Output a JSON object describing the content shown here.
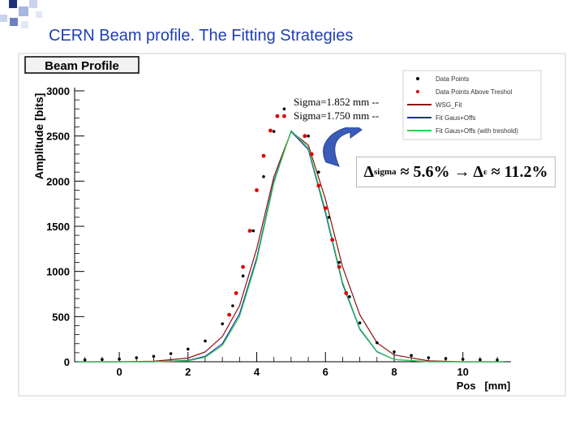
{
  "slide": {
    "title": "CERN Beam profile. The Fitting Strategies"
  },
  "colors": {
    "title": "#1f3fb5",
    "data_points": "#000000",
    "above_threshold": "#e00000",
    "wsg_fit": "#8b1010",
    "fit_gauss_offs": "#1a2db0",
    "fit_gauss_offs_threshold": "#2ad44a",
    "arrow": "#3a5bb8"
  },
  "annotations": {
    "sigma_1": "Sigma=1.852 mm --",
    "sigma_2": "Sigma=1.750 mm --",
    "formula": {
      "delta": "Δ",
      "delta_sub_sigma": "sigma",
      "approx_1": "≈ 5.6% → Δ",
      "delta_sub_e": "ε",
      "approx_2": "≈ 11.2%"
    }
  },
  "chart_data": {
    "type": "scatter",
    "title": "Beam Profile",
    "xlabel": "Pos   [mm]",
    "ylabel": "Amplitude  [bits]",
    "xlim": [
      -1.3,
      11.4
    ],
    "ylim": [
      0,
      3000
    ],
    "x_ticks": [
      0,
      2,
      4,
      6,
      8,
      10
    ],
    "y_ticks": [
      0,
      500,
      1000,
      1500,
      2000,
      2500,
      3000
    ],
    "grid": false,
    "legend_position": "top-right",
    "legend": [
      "Data Points",
      "Data Points Above Treshol",
      "WSG_Fit",
      "Fit Gaus+Offs",
      "Fit Gaus+Offs (with treshold)"
    ],
    "series": [
      {
        "name": "Data Points",
        "kind": "points",
        "color": "#000000",
        "x": [
          -1.0,
          -0.5,
          0.0,
          0.5,
          1.0,
          1.5,
          2.0,
          2.5,
          3.0,
          3.3,
          3.6,
          3.9,
          4.2,
          4.5,
          4.8,
          5.0,
          5.2,
          5.5,
          5.8,
          6.1,
          6.4,
          6.7,
          7.0,
          7.5,
          8.0,
          8.5,
          9.0,
          9.5,
          10.0,
          10.5,
          11.0
        ],
        "y": [
          20,
          25,
          30,
          45,
          60,
          90,
          140,
          230,
          420,
          620,
          950,
          1450,
          2050,
          2550,
          2800,
          2700,
          2650,
          2500,
          2100,
          1600,
          1100,
          720,
          430,
          210,
          110,
          70,
          45,
          35,
          28,
          22,
          20
        ]
      },
      {
        "name": "Data Points Above Treshol",
        "kind": "points",
        "color": "#e00000",
        "x": [
          3.2,
          3.4,
          3.6,
          3.8,
          4.0,
          4.2,
          4.4,
          4.6,
          4.8,
          5.0,
          5.2,
          5.4,
          5.6,
          5.8,
          6.0,
          6.2,
          6.4,
          6.6
        ],
        "y": [
          520,
          760,
          1050,
          1450,
          1900,
          2280,
          2560,
          2720,
          2720,
          2680,
          2620,
          2500,
          2300,
          1950,
          1700,
          1350,
          1050,
          760
        ]
      },
      {
        "name": "WSG_Fit",
        "kind": "line",
        "color": "#8b1010",
        "x": [
          -1.2,
          0,
          1,
          2,
          2.5,
          3,
          3.5,
          4,
          4.5,
          5,
          5.5,
          6,
          6.5,
          7,
          7.5,
          8,
          9,
          10,
          11.2
        ],
        "y": [
          0,
          0,
          5,
          40,
          110,
          280,
          620,
          1250,
          2050,
          2550,
          2400,
          1800,
          1050,
          520,
          210,
          75,
          10,
          0,
          0
        ]
      },
      {
        "name": "Fit Gaus+Offs",
        "kind": "line",
        "color": "#1a2db0",
        "x": [
          -1.2,
          0,
          1,
          2,
          2.5,
          3,
          3.5,
          4,
          4.5,
          5,
          5.5,
          6,
          6.5,
          7,
          7.5,
          8,
          9,
          10,
          11.2
        ],
        "y": [
          0,
          0,
          0,
          15,
          60,
          200,
          530,
          1150,
          2000,
          2550,
          2350,
          1650,
          860,
          360,
          110,
          25,
          0,
          0,
          0
        ]
      },
      {
        "name": "Fit Gaus+Offs (with treshold)",
        "kind": "line",
        "color": "#2ad44a",
        "x": [
          -1.2,
          0,
          1,
          2,
          2.5,
          3,
          3.5,
          4,
          4.5,
          5,
          5.5,
          6,
          6.5,
          7,
          7.5,
          8,
          9,
          10,
          11.2
        ],
        "y": [
          0,
          0,
          0,
          10,
          50,
          180,
          500,
          1120,
          1980,
          2560,
          2370,
          1680,
          880,
          370,
          115,
          25,
          0,
          0,
          0
        ]
      }
    ]
  }
}
